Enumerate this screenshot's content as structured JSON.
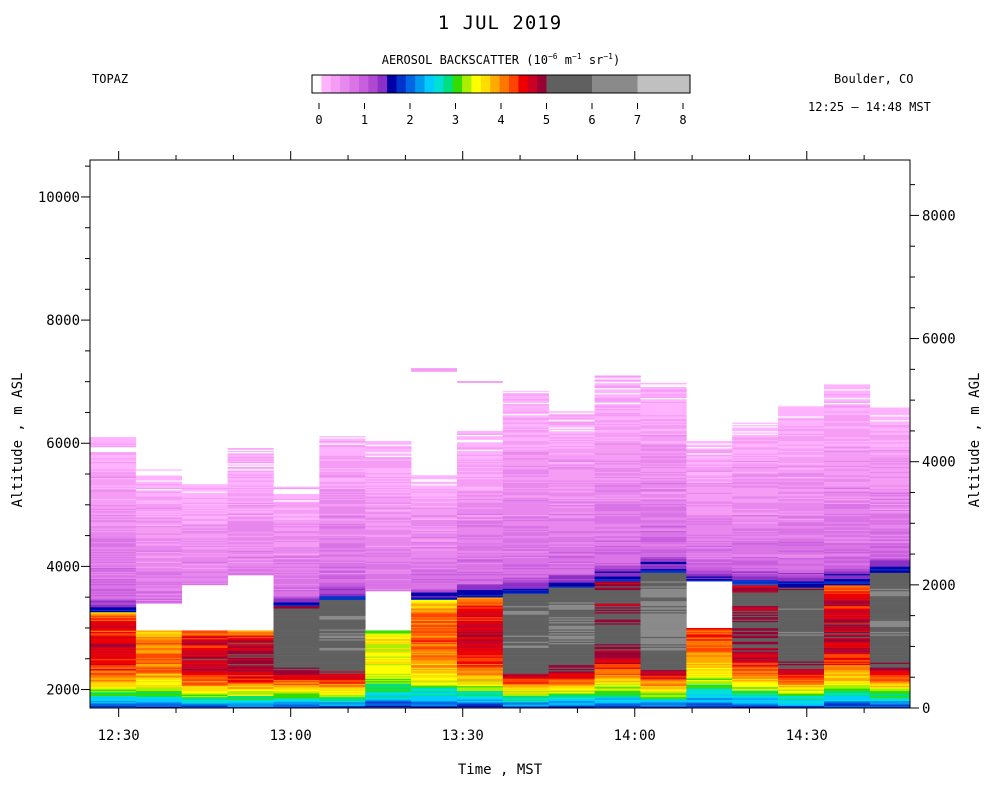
{
  "chart_data": {
    "type": "heatmap",
    "title": "1 JUL 2019",
    "instrument": "TOPAZ",
    "location": "Boulder, CO",
    "time_range": "12:25 – 14:48 MST",
    "colorbar": {
      "title_prefix": "AEROSOL BACKSCATTER (10",
      "title_exp1": "−6",
      "title_mid1": " m",
      "title_exp2": "−1",
      "title_mid2": " sr",
      "title_exp3": "−1",
      "title_suffix": ")",
      "ticks": [
        "0",
        "1",
        "2",
        "3",
        "4",
        "5",
        "6",
        "7",
        "8"
      ],
      "range": [
        0,
        8
      ],
      "colors_fine": [
        "#ffffff",
        "#ffb3ff",
        "#f59cf5",
        "#e887ee",
        "#da74e6",
        "#c95fdf",
        "#b048d2",
        "#8a30c6",
        "#0000a6",
        "#0033cc",
        "#0066e6",
        "#0099f0",
        "#00ccff",
        "#00e0d8",
        "#00e080",
        "#33dd00",
        "#aaee00",
        "#ffff00",
        "#ffdd00",
        "#ffaa00",
        "#ff7700",
        "#ff4400",
        "#ee0000",
        "#cc0022",
        "#990033"
      ],
      "colors_coarse": [
        "#606060",
        "#8a8a8a",
        "#c0c0c0"
      ]
    },
    "x_axis": {
      "label": "Time , MST",
      "range": [
        "12:25",
        "14:48"
      ],
      "tick_labels": [
        "12:30",
        "13:00",
        "13:30",
        "14:00",
        "14:30"
      ]
    },
    "y_axis_left": {
      "label": "Altitude , m ASL",
      "range": [
        1700,
        10600
      ],
      "tick_labels": [
        "2000",
        "4000",
        "6000",
        "8000",
        "10000"
      ]
    },
    "y_axis_right": {
      "label": "Altitude , m AGL",
      "range": [
        0,
        8900
      ],
      "tick_labels": [
        "0",
        "2000",
        "4000",
        "6000",
        "8000"
      ]
    },
    "profiles": [
      {
        "start": "12:25",
        "end": "12:33",
        "top": 6100,
        "bl_top": 3250,
        "gap": null,
        "peak": 4.6
      },
      {
        "start": "12:33",
        "end": "12:41",
        "top": 5600,
        "bl_top": 2950,
        "gap": [
          2950,
          3400
        ],
        "peak": 4.2
      },
      {
        "start": "12:41",
        "end": "12:49",
        "top": 5350,
        "bl_top": 2950,
        "gap": [
          2950,
          3700
        ],
        "peak": 4.8
      },
      {
        "start": "12:49",
        "end": "12:57",
        "top": 5920,
        "bl_top": 2950,
        "gap": [
          2950,
          3850
        ],
        "peak": 4.9
      },
      {
        "start": "12:57",
        "end": "13:05",
        "top": 5330,
        "bl_top": 3350,
        "gap": null,
        "peak": 5.6
      },
      {
        "start": "13:05",
        "end": "13:13",
        "top": 6150,
        "bl_top": 3450,
        "gap": null,
        "peak": 5.9
      },
      {
        "start": "13:13",
        "end": "13:21",
        "top": 6050,
        "bl_top": 2950,
        "gap": [
          2950,
          3600
        ],
        "peak": 3.6
      },
      {
        "start": "13:21",
        "end": "13:29",
        "top": 5480,
        "bl_top": 3450,
        "gap": null,
        "peak": 4.2
      },
      {
        "start": "13:29",
        "end": "13:37",
        "top": 6200,
        "bl_top": 3500,
        "gap": null,
        "peak": 4.7
      },
      {
        "start": "13:37",
        "end": "13:45",
        "top": 6850,
        "bl_top": 3550,
        "gap": null,
        "peak": 5.9
      },
      {
        "start": "13:45",
        "end": "13:53",
        "top": 6520,
        "bl_top": 3650,
        "gap": null,
        "peak": 6.0
      },
      {
        "start": "13:53",
        "end": "14:01",
        "top": 7100,
        "bl_top": 3750,
        "gap": null,
        "peak": 5.2
      },
      {
        "start": "14:01",
        "end": "14:09",
        "top": 6980,
        "bl_top": 3900,
        "gap": null,
        "peak": 6.3
      },
      {
        "start": "14:09",
        "end": "14:17",
        "top": 6050,
        "bl_top": 3750,
        "gap": [
          3000,
          3750
        ],
        "peak": 4.3
      },
      {
        "start": "14:17",
        "end": "14:25",
        "top": 6380,
        "bl_top": 3700,
        "gap": null,
        "peak": 5.1
      },
      {
        "start": "14:25",
        "end": "14:33",
        "top": 6600,
        "bl_top": 3650,
        "gap": null,
        "peak": 5.8
      },
      {
        "start": "14:33",
        "end": "14:41",
        "top": 6980,
        "bl_top": 3700,
        "gap": null,
        "peak": 4.8
      },
      {
        "start": "14:41",
        "end": "14:48",
        "top": 6580,
        "bl_top": 3900,
        "gap": null,
        "peak": 5.9
      }
    ],
    "extra_layers": [
      {
        "start": "13:21",
        "end": "13:29",
        "bottom": 7160,
        "top": 7220
      },
      {
        "start": "13:29",
        "end": "13:37",
        "bottom": 6980,
        "top": 7010
      }
    ]
  }
}
